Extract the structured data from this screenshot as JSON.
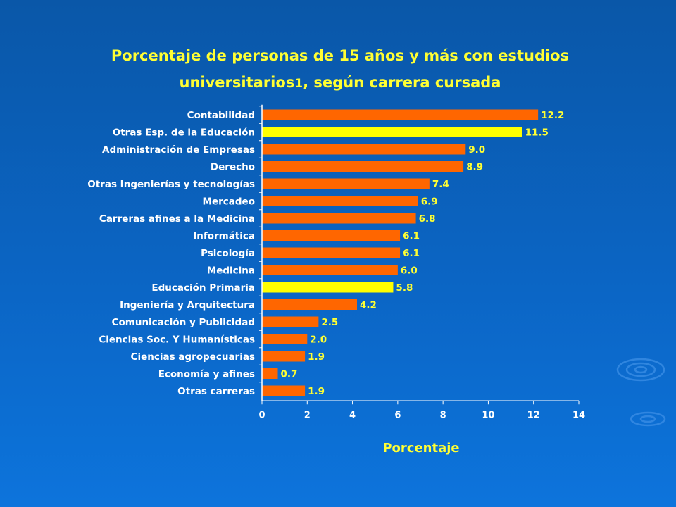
{
  "colors": {
    "background": "#0b65c4",
    "title_text": "#ffff33",
    "tick_text": "#ffffff",
    "bar_orange": "#ff6600",
    "bar_yellow": "#ffff00",
    "value_text": "#ffff33",
    "axis_label_text": "#ffff33",
    "axis_line": "#ffffff"
  },
  "chart_data": {
    "type": "bar",
    "orientation": "horizontal",
    "title": {
      "line1": "Porcentaje de personas de 15 años y más con estudios",
      "line2_before": "universitarios",
      "line2_sup": "1",
      "line2_after": ", según carrera cursada"
    },
    "xlabel": "Porcentaje",
    "ylabel": "",
    "xlim": [
      0,
      14
    ],
    "x_ticks": [
      "0",
      "2",
      "4",
      "6",
      "8",
      "10",
      "12",
      "14"
    ],
    "grid": false,
    "legend": "none",
    "categories": [
      "Contabilidad",
      "Otras Esp. de la Educación",
      "Administración de Empresas",
      "Derecho",
      "Otras Ingenierías y tecnologías",
      "Mercadeo",
      "Carreras afines a la Medicina",
      "Informática",
      "Psicología",
      "Medicina",
      "Educación Primaria",
      "Ingeniería y Arquitectura",
      "Comunicación y Publicidad",
      "Ciencias Soc. Y Humanísticas",
      "Ciencias agropecuarias",
      "Economía y afines",
      "Otras carreras"
    ],
    "values": [
      12.2,
      11.5,
      9.0,
      8.9,
      7.4,
      6.9,
      6.8,
      6.1,
      6.1,
      6.0,
      5.8,
      4.2,
      2.5,
      2.0,
      1.9,
      0.7,
      1.9
    ],
    "value_labels": [
      "12.2",
      "11.5",
      "9.0",
      "8.9",
      "7.4",
      "6.9",
      "6.8",
      "6.1",
      "6.1",
      "6.0",
      "5.8",
      "4.2",
      "2.5",
      "2.0",
      "1.9",
      "0.7",
      "1.9"
    ],
    "highlight_categories": [
      "Otras Esp. de la Educación",
      "Educación Primaria"
    ]
  }
}
